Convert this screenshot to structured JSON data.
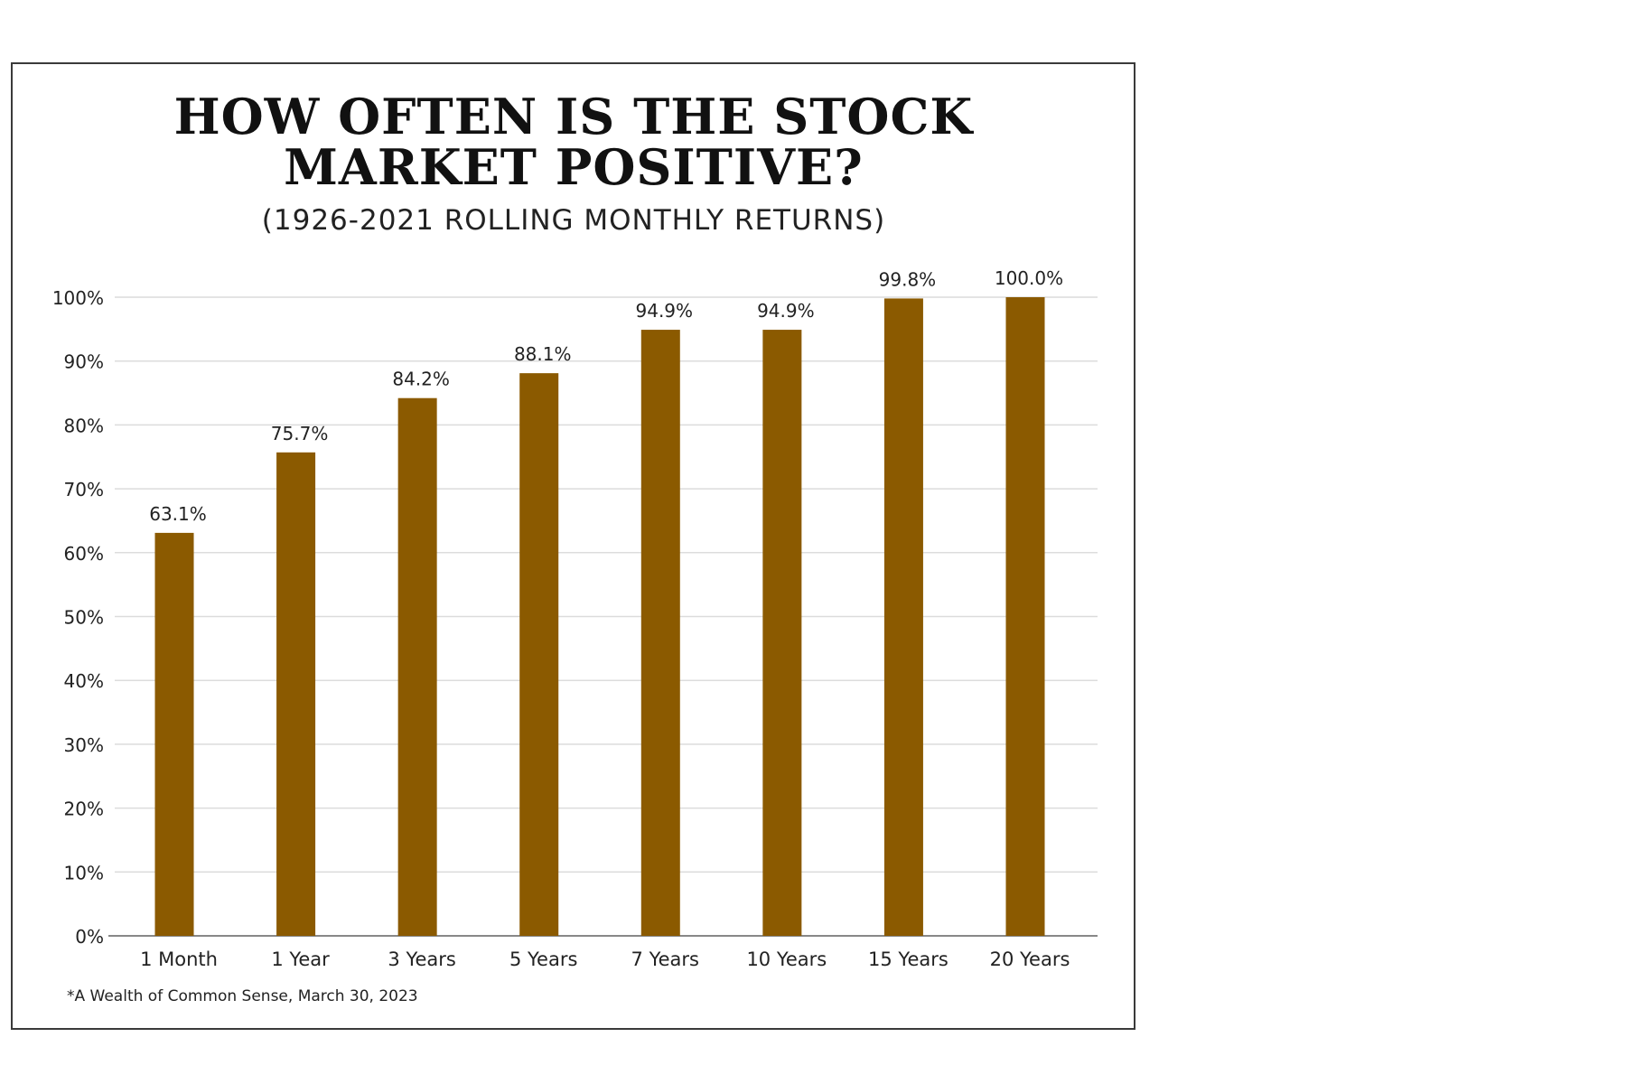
{
  "chart_data": {
    "type": "bar",
    "title_lines": [
      "HOW OFTEN IS THE STOCK",
      "MARKET POSITIVE?"
    ],
    "subtitle": "(1926-2021 ROLLING MONTHLY RETURNS)",
    "xlabel": "",
    "ylabel": "",
    "categories": [
      "1 Month",
      "1 Year",
      "3 Years",
      "5 Years",
      "7 Years",
      "10 Years",
      "15 Years",
      "20 Years"
    ],
    "values": [
      63.1,
      75.7,
      84.2,
      88.1,
      94.9,
      94.9,
      99.8,
      100.0
    ],
    "data_labels": [
      "63.1%",
      "75.7%",
      "84.2%",
      "88.1%",
      "94.9%",
      "94.9%",
      "99.8%",
      "100.0%"
    ],
    "ylim": [
      0,
      100
    ],
    "yticks": [
      0,
      10,
      20,
      30,
      40,
      50,
      60,
      70,
      80,
      90,
      100
    ],
    "ytick_labels": [
      "0%",
      "10%",
      "20%",
      "30%",
      "40%",
      "50%",
      "60%",
      "70%",
      "80%",
      "90%",
      "100%"
    ],
    "grid": true,
    "legend": "none",
    "bar_color": "#8B5A00",
    "footnote": "*A Wealth of Common Sense, March 30, 2023"
  }
}
